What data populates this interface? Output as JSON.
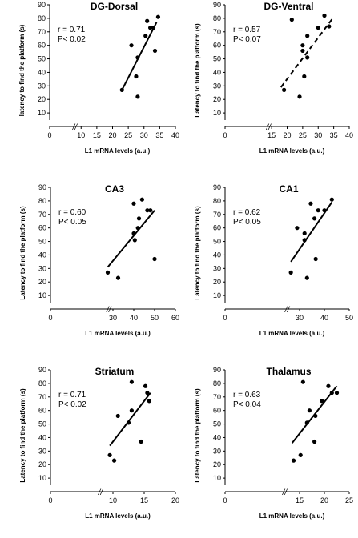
{
  "chart_data": [
    {
      "type": "scatter",
      "title": "DG-Dorsal",
      "xlabel": "L1 mRNA levels (a.u.)",
      "ylabel": "latency to find the platform (s)",
      "xlim": [
        0,
        40
      ],
      "ylim": [
        0,
        90
      ],
      "xticks": [
        "0",
        "10",
        "15",
        "20",
        "25",
        "30",
        "35",
        "40"
      ],
      "yticks": [
        "10",
        "20",
        "30",
        "40",
        "50",
        "60",
        "70",
        "80",
        "90"
      ],
      "axis_break": "//",
      "stats": {
        "r": "r = 0.71",
        "p": "P< 0.02"
      },
      "fit_line": {
        "style": "solid",
        "x": [
          23,
          34
        ],
        "y": [
          27,
          77
        ]
      },
      "points": {
        "x": [
          23,
          26,
          28,
          27.5,
          28,
          30.5,
          31,
          32,
          33,
          33.5,
          34.5
        ],
        "y": [
          27,
          60,
          51,
          37,
          22,
          67,
          78,
          73,
          73,
          56,
          81
        ]
      }
    },
    {
      "type": "scatter",
      "title": "DG-Ventral",
      "xlabel": "L1 mRNA levels (a.u.)",
      "ylabel": "Latency to find the platform (s)",
      "xlim": [
        0,
        40
      ],
      "ylim": [
        0,
        90
      ],
      "xticks": [
        "0",
        "15",
        "20",
        "25",
        "30",
        "35",
        "40"
      ],
      "yticks": [
        "10",
        "20",
        "30",
        "40",
        "50",
        "60",
        "70",
        "80",
        "90"
      ],
      "axis_break": "//",
      "stats": {
        "r": "r = 0.57",
        "p": "P< 0.07"
      },
      "fit_line": {
        "style": "dashed",
        "x": [
          18,
          35
        ],
        "y": [
          29,
          81
        ]
      },
      "points": {
        "x": [
          19,
          21.5,
          24,
          25,
          25,
          25.5,
          26.5,
          26.5,
          30,
          32,
          33.5
        ],
        "y": [
          27,
          79,
          22,
          60,
          56,
          37,
          67,
          51,
          73,
          82,
          74
        ]
      }
    },
    {
      "type": "scatter",
      "title": "CA3",
      "xlabel": "L1 mRNA levels (a.u.)",
      "ylabel": "Latency to find the platform (s)",
      "xlim": [
        0,
        60
      ],
      "ylim": [
        0,
        90
      ],
      "xticks": [
        "0",
        "30",
        "40",
        "50",
        "60"
      ],
      "yticks": [
        "10",
        "20",
        "30",
        "40",
        "50",
        "60",
        "70",
        "80",
        "90"
      ],
      "axis_break": "//",
      "stats": {
        "r": "r = 0.60",
        "p": "P< 0.05"
      },
      "fit_line": {
        "style": "solid",
        "x": [
          27.5,
          50
        ],
        "y": [
          31,
          73
        ]
      },
      "points": {
        "x": [
          27.5,
          32.5,
          40,
          40,
          40.5,
          42,
          42.5,
          44,
          46.5,
          48,
          50
        ],
        "y": [
          27,
          23,
          78,
          56,
          51,
          60,
          67,
          81,
          73,
          73,
          37
        ]
      }
    },
    {
      "type": "scatter",
      "title": "CA1",
      "xlabel": "L1 mRNA levels (a.u.)",
      "ylabel": "Latency to find the platform (s)",
      "xlim": [
        0,
        50
      ],
      "ylim": [
        0,
        90
      ],
      "xticks": [
        "0",
        "30",
        "40",
        "50"
      ],
      "yticks": [
        "10",
        "20",
        "30",
        "40",
        "50",
        "60",
        "70",
        "80",
        "90"
      ],
      "axis_break": "//",
      "stats": {
        "r": "r = 0.62",
        "p": "P< 0.05"
      },
      "fit_line": {
        "style": "solid",
        "x": [
          26.5,
          43
        ],
        "y": [
          35,
          79
        ]
      },
      "points": {
        "x": [
          26.5,
          29,
          32,
          32,
          33,
          34.5,
          36,
          36.5,
          37.5,
          40,
          43
        ],
        "y": [
          27,
          60,
          56,
          51,
          23,
          78,
          67,
          37,
          73,
          73,
          81
        ]
      }
    },
    {
      "type": "scatter",
      "title": "Striatum",
      "xlabel": "L1 mRNA levels (a.u.)",
      "ylabel": "Latency to find the platform (s)",
      "xlim": [
        0,
        20
      ],
      "ylim": [
        0,
        90
      ],
      "xticks": [
        "0",
        "10",
        "15",
        "20"
      ],
      "yticks": [
        "10",
        "20",
        "30",
        "40",
        "50",
        "60",
        "70",
        "80",
        "90"
      ],
      "axis_break": "//",
      "stats": {
        "r": "r = 0.71",
        "p": "P< 0.02"
      },
      "fit_line": {
        "style": "solid",
        "x": [
          9.5,
          16
        ],
        "y": [
          34,
          73
        ]
      },
      "points": {
        "x": [
          9.5,
          10.2,
          10.8,
          12.5,
          13,
          13,
          14.5,
          15.2,
          15.5,
          15.8
        ],
        "y": [
          27,
          23,
          56,
          51,
          60,
          81,
          37,
          78,
          73,
          67
        ]
      }
    },
    {
      "type": "scatter",
      "title": "Thalamus",
      "xlabel": "L1 mRNA levels (a.u.)",
      "ylabel": "Latency to find the platform (s)",
      "xlim": [
        0,
        25
      ],
      "ylim": [
        0,
        90
      ],
      "xticks": [
        "0",
        "15",
        "20",
        "25"
      ],
      "yticks": [
        "10",
        "20",
        "30",
        "40",
        "50",
        "60",
        "70",
        "80",
        "90"
      ],
      "axis_break": "//",
      "stats": {
        "r": "r = 0.63",
        "p": "P< 0.04"
      },
      "fit_line": {
        "style": "solid",
        "x": [
          13.5,
          22.5
        ],
        "y": [
          36,
          78
        ]
      },
      "points": {
        "x": [
          13.8,
          15.2,
          15.7,
          16.5,
          17,
          18,
          18.2,
          19.5,
          20.8,
          21.5,
          22.5
        ],
        "y": [
          23,
          27,
          81,
          51,
          60,
          37,
          56,
          67,
          78,
          73,
          73
        ]
      }
    }
  ]
}
